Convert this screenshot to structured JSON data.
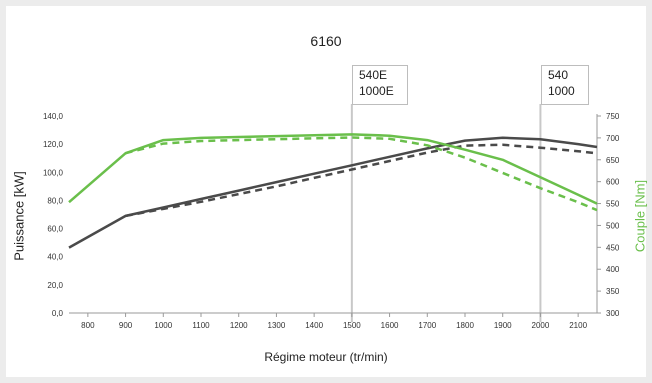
{
  "chart_data": {
    "type": "line",
    "title": "6160",
    "xlabel": "Régime moteur (tr/min)",
    "ylabel": "Puissance [kW]",
    "y2label": "Couple [Nm]",
    "x_ticks": [
      "800",
      "900",
      "1000",
      "1100",
      "1200",
      "1300",
      "1400",
      "1500",
      "1600",
      "1700",
      "1800",
      "1900",
      "2000",
      "2100"
    ],
    "xlim": [
      750,
      2150
    ],
    "y_ticks": [
      "0,0",
      "20,0",
      "40,0",
      "60,0",
      "80,0",
      "100,0",
      "120,0",
      "140,0"
    ],
    "ylim": [
      0,
      140
    ],
    "y2_ticks": [
      "300",
      "350",
      "400",
      "450",
      "500",
      "550",
      "600",
      "650",
      "700",
      "750"
    ],
    "y2lim": [
      300,
      750
    ],
    "grid": false,
    "colors": {
      "power": "#4a4a4a",
      "torque": "#6abf4b",
      "marker": "#c8c8c8"
    },
    "series": [
      {
        "axis": "left",
        "style": "solid",
        "x": [
          750,
          900,
          1000,
          1100,
          1200,
          1300,
          1400,
          1500,
          1600,
          1700,
          1800,
          1900,
          2000,
          2100,
          2150
        ],
        "values": [
          46.5,
          69,
          75,
          81,
          87,
          93,
          99,
          105,
          111,
          117,
          122.5,
          124.5,
          123.5,
          120,
          118
        ]
      },
      {
        "axis": "left",
        "style": "dashed",
        "x": [
          900,
          1000,
          1100,
          1200,
          1300,
          1400,
          1500,
          1600,
          1700,
          1800,
          1900,
          2000,
          2100,
          2150
        ],
        "values": [
          69,
          74,
          79,
          84.5,
          90,
          96,
          102,
          108,
          114,
          119,
          119.5,
          117.5,
          115,
          113.5
        ]
      },
      {
        "axis": "right",
        "style": "solid",
        "x": [
          750,
          900,
          1000,
          1100,
          1200,
          1300,
          1400,
          1500,
          1600,
          1700,
          1800,
          1900,
          2000,
          2100,
          2150
        ],
        "values": [
          553,
          665,
          695,
          700,
          702,
          704,
          706,
          708,
          705,
          695,
          673,
          650,
          610,
          570,
          550
        ]
      },
      {
        "axis": "right",
        "style": "dashed",
        "x": [
          900,
          1000,
          1100,
          1200,
          1300,
          1400,
          1500,
          1600,
          1700,
          1800,
          1900,
          2000,
          2100,
          2150
        ],
        "values": [
          665,
          687,
          693,
          695,
          697,
          699,
          701,
          698,
          683,
          655,
          620,
          585,
          553,
          535
        ]
      }
    ],
    "markers": [
      {
        "x": 1500,
        "lines": [
          "540E",
          "1000E"
        ]
      },
      {
        "x": 2000,
        "lines": [
          "540",
          "1000"
        ]
      }
    ]
  }
}
